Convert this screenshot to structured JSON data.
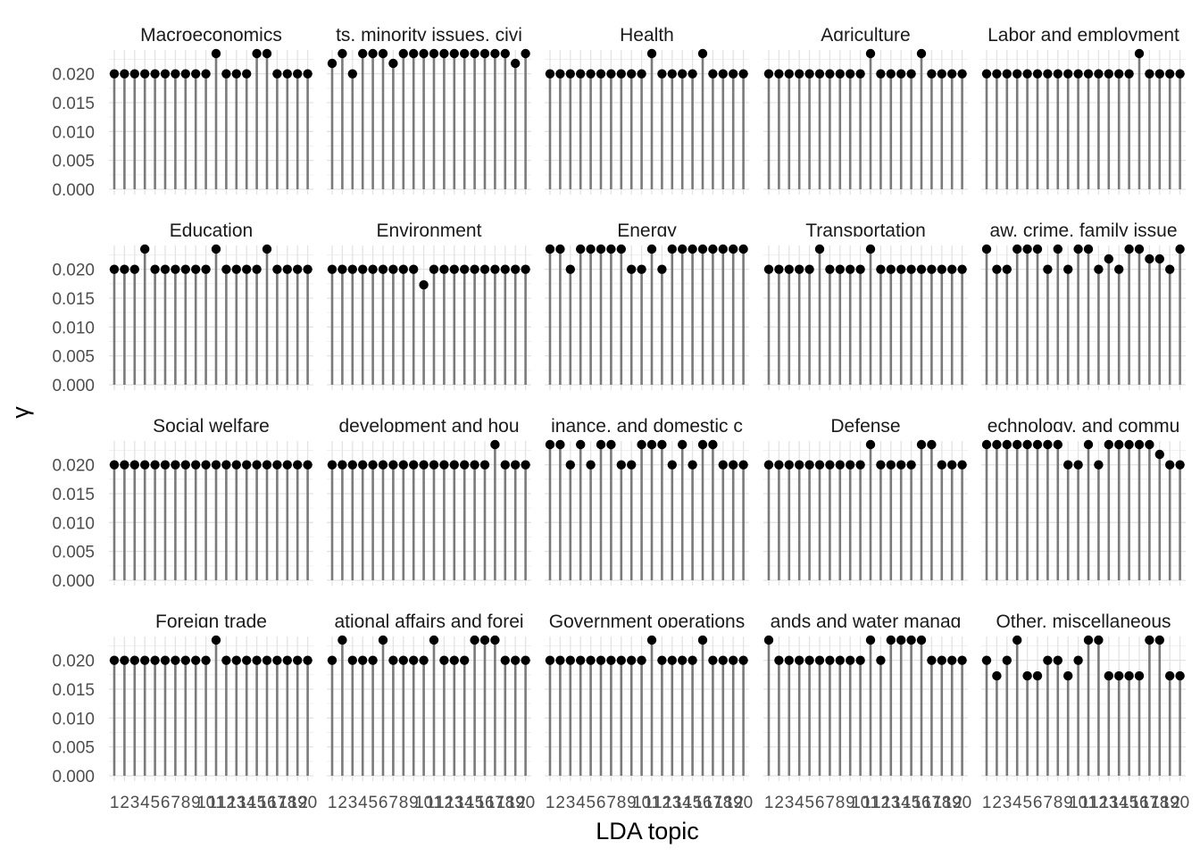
{
  "chart_data": {
    "type": "lollipop",
    "xlabel": "LDA topic",
    "ylabel": "γ",
    "x": [
      1,
      2,
      3,
      4,
      5,
      6,
      7,
      8,
      9,
      10,
      11,
      12,
      13,
      14,
      15,
      16,
      17,
      18,
      19,
      20
    ],
    "ylim": [
      0,
      0.0235
    ],
    "yticks": [
      "0.000",
      "0.005",
      "0.010",
      "0.015",
      "0.020"
    ],
    "ytick_values": [
      0,
      0.005,
      0.01,
      0.015,
      0.02
    ],
    "grid": true,
    "facet_columns": 5,
    "panels": [
      {
        "title": "Macroeconomics",
        "values": [
          0.02,
          0.02,
          0.02,
          0.02,
          0.02,
          0.02,
          0.02,
          0.02,
          0.02,
          0.02,
          0.0235,
          0.02,
          0.02,
          0.02,
          0.0235,
          0.0235,
          0.02,
          0.02,
          0.02,
          0.02
        ]
      },
      {
        "title": "ts, minority issues, civi",
        "values": [
          0.0218,
          0.0235,
          0.02,
          0.0235,
          0.0235,
          0.0235,
          0.0218,
          0.0235,
          0.0235,
          0.0235,
          0.0235,
          0.0235,
          0.0235,
          0.0235,
          0.0235,
          0.0235,
          0.0235,
          0.0235,
          0.0218,
          0.0235
        ]
      },
      {
        "title": "Health",
        "values": [
          0.02,
          0.02,
          0.02,
          0.02,
          0.02,
          0.02,
          0.02,
          0.02,
          0.02,
          0.02,
          0.0235,
          0.02,
          0.02,
          0.02,
          0.02,
          0.0235,
          0.02,
          0.02,
          0.02,
          0.02
        ]
      },
      {
        "title": "Agriculture",
        "values": [
          0.02,
          0.02,
          0.02,
          0.02,
          0.02,
          0.02,
          0.02,
          0.02,
          0.02,
          0.02,
          0.0235,
          0.02,
          0.02,
          0.02,
          0.02,
          0.0235,
          0.02,
          0.02,
          0.02,
          0.02
        ]
      },
      {
        "title": "Labor and employment",
        "values": [
          0.02,
          0.02,
          0.02,
          0.02,
          0.02,
          0.02,
          0.02,
          0.02,
          0.02,
          0.02,
          0.02,
          0.02,
          0.02,
          0.02,
          0.02,
          0.0235,
          0.02,
          0.02,
          0.02,
          0.02
        ]
      },
      {
        "title": "Education",
        "values": [
          0.02,
          0.02,
          0.02,
          0.0235,
          0.02,
          0.02,
          0.02,
          0.02,
          0.02,
          0.02,
          0.0235,
          0.02,
          0.02,
          0.02,
          0.02,
          0.0235,
          0.02,
          0.02,
          0.02,
          0.02
        ]
      },
      {
        "title": "Environment",
        "values": [
          0.02,
          0.02,
          0.02,
          0.02,
          0.02,
          0.02,
          0.02,
          0.02,
          0.02,
          0.0173,
          0.02,
          0.02,
          0.02,
          0.02,
          0.02,
          0.02,
          0.02,
          0.02,
          0.02,
          0.02
        ]
      },
      {
        "title": "Energy",
        "values": [
          0.0235,
          0.0235,
          0.02,
          0.0235,
          0.0235,
          0.0235,
          0.0235,
          0.0235,
          0.02,
          0.02,
          0.0235,
          0.02,
          0.0235,
          0.0235,
          0.0235,
          0.0235,
          0.0235,
          0.0235,
          0.0235,
          0.0235
        ]
      },
      {
        "title": "Transportation",
        "values": [
          0.02,
          0.02,
          0.02,
          0.02,
          0.02,
          0.0235,
          0.02,
          0.02,
          0.02,
          0.02,
          0.0235,
          0.02,
          0.02,
          0.02,
          0.02,
          0.02,
          0.02,
          0.02,
          0.02,
          0.02
        ]
      },
      {
        "title": "aw, crime, family issue",
        "values": [
          0.0235,
          0.02,
          0.02,
          0.0235,
          0.0235,
          0.0235,
          0.02,
          0.0235,
          0.02,
          0.0235,
          0.0235,
          0.02,
          0.0218,
          0.02,
          0.0235,
          0.0235,
          0.0218,
          0.0218,
          0.02,
          0.0235
        ]
      },
      {
        "title": "Social welfare",
        "values": [
          0.02,
          0.02,
          0.02,
          0.02,
          0.02,
          0.02,
          0.02,
          0.02,
          0.02,
          0.02,
          0.02,
          0.02,
          0.02,
          0.02,
          0.02,
          0.02,
          0.02,
          0.02,
          0.02,
          0.02
        ]
      },
      {
        "title": "development and hou",
        "values": [
          0.02,
          0.02,
          0.02,
          0.02,
          0.02,
          0.02,
          0.02,
          0.02,
          0.02,
          0.02,
          0.02,
          0.02,
          0.02,
          0.02,
          0.02,
          0.02,
          0.0235,
          0.02,
          0.02,
          0.02
        ]
      },
      {
        "title": "inance, and domestic c",
        "values": [
          0.0235,
          0.0235,
          0.02,
          0.0235,
          0.02,
          0.0235,
          0.0235,
          0.02,
          0.02,
          0.0235,
          0.0235,
          0.0235,
          0.02,
          0.0235,
          0.02,
          0.0235,
          0.0235,
          0.02,
          0.02,
          0.02
        ]
      },
      {
        "title": "Defense",
        "values": [
          0.02,
          0.02,
          0.02,
          0.02,
          0.02,
          0.02,
          0.02,
          0.02,
          0.02,
          0.02,
          0.0235,
          0.02,
          0.02,
          0.02,
          0.02,
          0.0235,
          0.0235,
          0.02,
          0.02,
          0.02
        ]
      },
      {
        "title": "echnology, and commu",
        "values": [
          0.0235,
          0.0235,
          0.0235,
          0.0235,
          0.0235,
          0.0235,
          0.0235,
          0.0235,
          0.02,
          0.02,
          0.0235,
          0.02,
          0.0235,
          0.0235,
          0.0235,
          0.0235,
          0.0235,
          0.0218,
          0.02,
          0.02
        ]
      },
      {
        "title": "Foreign trade",
        "values": [
          0.02,
          0.02,
          0.02,
          0.02,
          0.02,
          0.02,
          0.02,
          0.02,
          0.02,
          0.02,
          0.0235,
          0.02,
          0.02,
          0.02,
          0.02,
          0.02,
          0.02,
          0.02,
          0.02,
          0.02
        ]
      },
      {
        "title": "ational affairs and forei",
        "values": [
          0.02,
          0.0235,
          0.02,
          0.02,
          0.02,
          0.0235,
          0.02,
          0.02,
          0.02,
          0.02,
          0.0235,
          0.02,
          0.02,
          0.02,
          0.0235,
          0.0235,
          0.0235,
          0.02,
          0.02,
          0.02
        ]
      },
      {
        "title": "Government operations",
        "values": [
          0.02,
          0.02,
          0.02,
          0.02,
          0.02,
          0.02,
          0.02,
          0.02,
          0.02,
          0.02,
          0.0235,
          0.02,
          0.02,
          0.02,
          0.02,
          0.0235,
          0.02,
          0.02,
          0.02,
          0.02
        ]
      },
      {
        "title": "ands and water manag",
        "values": [
          0.0235,
          0.02,
          0.02,
          0.02,
          0.02,
          0.02,
          0.02,
          0.02,
          0.02,
          0.02,
          0.0235,
          0.02,
          0.0235,
          0.0235,
          0.0235,
          0.0235,
          0.02,
          0.02,
          0.02,
          0.02
        ]
      },
      {
        "title": "Other, miscellaneous",
        "values": [
          0.02,
          0.0173,
          0.02,
          0.0235,
          0.0173,
          0.0173,
          0.02,
          0.02,
          0.0173,
          0.02,
          0.0235,
          0.0235,
          0.0173,
          0.0173,
          0.0173,
          0.0173,
          0.0235,
          0.0235,
          0.0173,
          0.0173
        ]
      }
    ]
  }
}
